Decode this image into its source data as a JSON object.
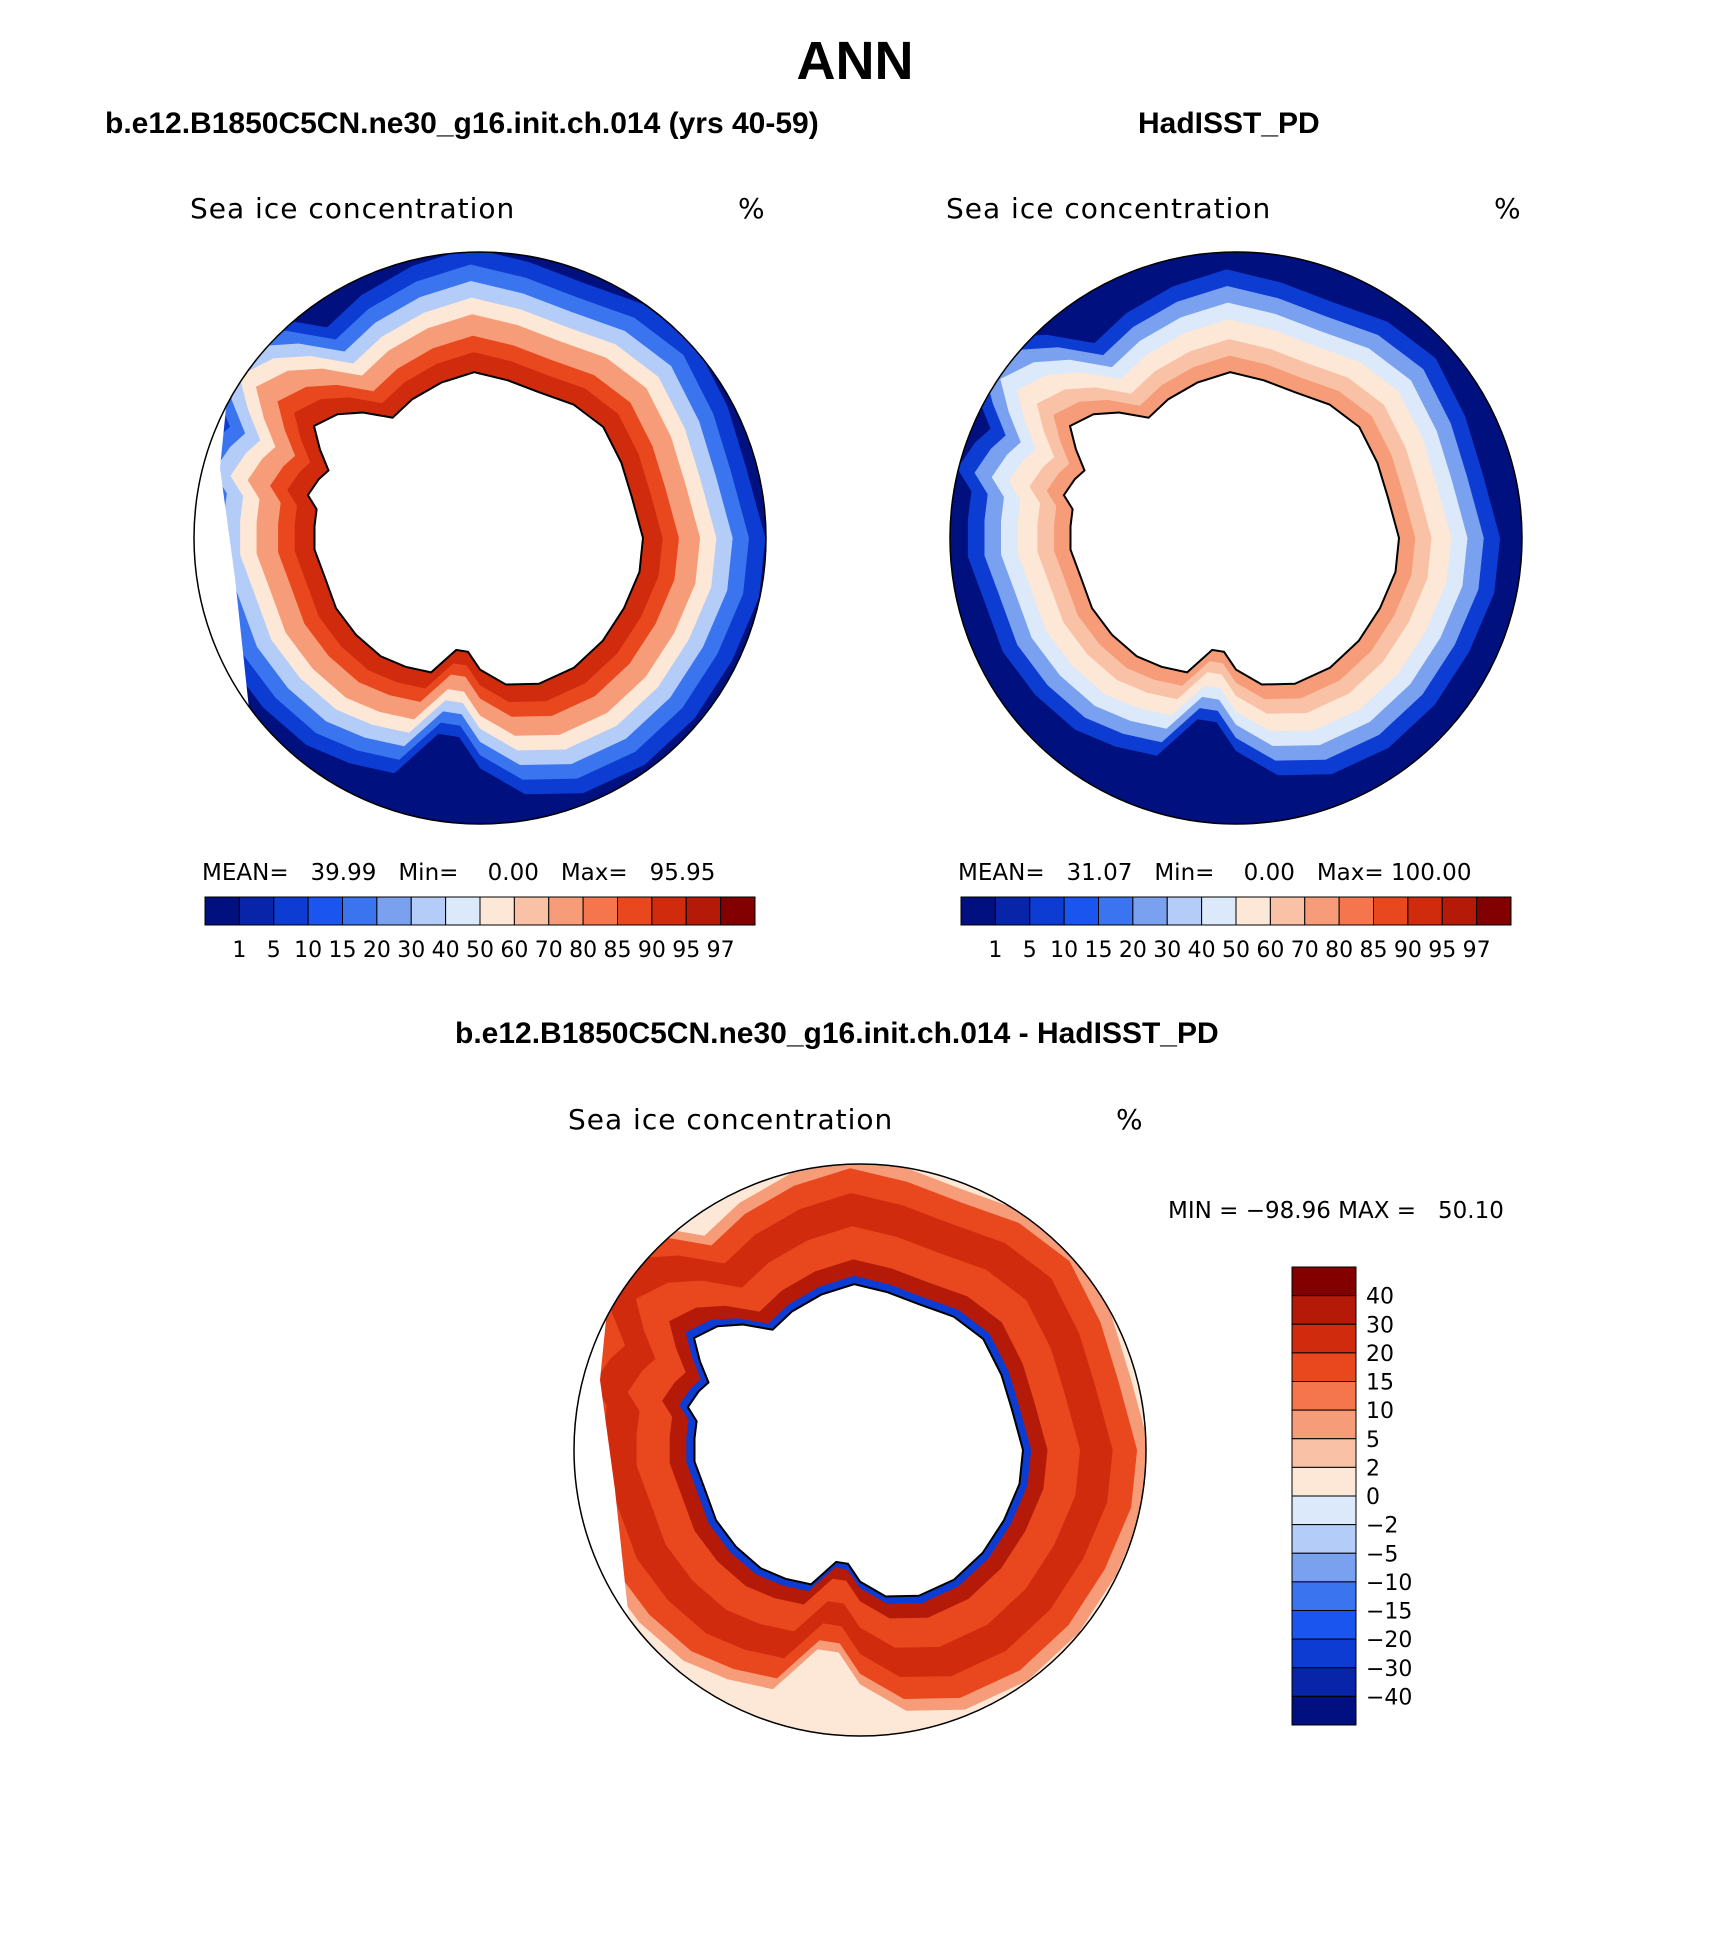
{
  "figure": {
    "title": "ANN",
    "colors": {
      "ocean_low": "#00107e",
      "ice_high": "#820000",
      "land": "#ffffff",
      "coast": "#000000"
    }
  },
  "panels": [
    {
      "title": "b.e12.B1850C5CN.ne30_g16.init.ch.014 (yrs 40-59)",
      "variable": "Sea ice concentration",
      "units": "%",
      "stats": {
        "mean_label": "MEAN=",
        "mean": "39.99",
        "min_label": "Min=",
        "min": "0.00",
        "max_label": "Max=",
        "max": "95.95"
      },
      "colorbar": {
        "labels": [
          "1",
          "5",
          "10",
          "15",
          "20",
          "30",
          "40",
          "50",
          "60",
          "70",
          "80",
          "85",
          "90",
          "95",
          "97"
        ],
        "colors": [
          "#00107e",
          "#0824a8",
          "#0d3cd2",
          "#1b55f0",
          "#3a74ee",
          "#7aa0f0",
          "#b4ccf8",
          "#dce9fa",
          "#fde7d6",
          "#f9c2a6",
          "#f69c78",
          "#f5764d",
          "#e9471e",
          "#d12b0e",
          "#b51a09",
          "#820000"
        ]
      }
    },
    {
      "title": "HadISST_PD",
      "variable": "Sea ice concentration",
      "units": "%",
      "stats": {
        "mean_label": "MEAN=",
        "mean": "31.07",
        "min_label": "Min=",
        "min": "0.00",
        "max_label": "Max=",
        "max": "100.00"
      },
      "colorbar": {
        "labels": [
          "1",
          "5",
          "10",
          "15",
          "20",
          "30",
          "40",
          "50",
          "60",
          "70",
          "80",
          "85",
          "90",
          "95",
          "97"
        ],
        "colors": [
          "#00107e",
          "#0824a8",
          "#0d3cd2",
          "#1b55f0",
          "#3a74ee",
          "#7aa0f0",
          "#b4ccf8",
          "#dce9fa",
          "#fde7d6",
          "#f9c2a6",
          "#f69c78",
          "#f5764d",
          "#e9471e",
          "#d12b0e",
          "#b51a09",
          "#820000"
        ]
      }
    },
    {
      "title": "b.e12.B1850C5CN.ne30_g16.init.ch.014 - HadISST_PD",
      "variable": "Sea ice concentration",
      "units": "%",
      "minmax": "MIN = −98.96 MAX =   50.10",
      "colorbar": {
        "labels": [
          "40",
          "30",
          "20",
          "15",
          "10",
          "5",
          "2",
          "0",
          "−2",
          "−5",
          "−10",
          "−15",
          "−20",
          "−30",
          "−40"
        ],
        "colors": [
          "#820000",
          "#b51a09",
          "#d12b0e",
          "#e9471e",
          "#f5764d",
          "#f69c78",
          "#f9c2a6",
          "#fde7d6",
          "#dce9fa",
          "#b4ccf8",
          "#7aa0f0",
          "#3a74ee",
          "#1b55f0",
          "#0d3cd2",
          "#0824a8",
          "#00107e"
        ]
      }
    }
  ]
}
